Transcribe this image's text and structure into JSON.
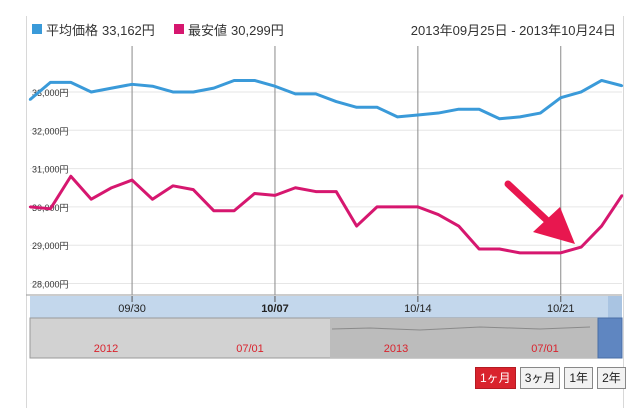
{
  "legend": {
    "average": {
      "label": "平均価格",
      "value": "33,162円",
      "color": "#3a9ad9"
    },
    "lowest": {
      "label": "最安値",
      "value": "30,299円",
      "color": "#d6176f"
    }
  },
  "date_range": {
    "start": "2013年09月25日",
    "separator": " - ",
    "end": "2013年10月24日"
  },
  "navigator": {
    "labels": [
      "2012",
      "07/01",
      "2013",
      "07/01"
    ],
    "label_color": "#d9232d"
  },
  "range_buttons": [
    {
      "label": "1ヶ月",
      "active": true
    },
    {
      "label": "3ヶ月",
      "active": false
    },
    {
      "label": "1年",
      "active": false
    },
    {
      "label": "2年",
      "active": false
    }
  ],
  "colors": {
    "accent": "#d9232d",
    "axis_band": "#c3d7ec",
    "arrow": "#e8174f"
  },
  "annotation": {
    "type": "arrow",
    "color": "#e8174f"
  },
  "chart_data": {
    "type": "line",
    "x_range": [
      "2013-09-25",
      "2013-10-24"
    ],
    "ylim": [
      27700,
      34200
    ],
    "y_ticks": [
      28000,
      29000,
      30000,
      31000,
      32000,
      33000
    ],
    "y_tick_labels": [
      "28,000円",
      "29,000円",
      "30,000円",
      "31,000円",
      "32,000円",
      "33,000円"
    ],
    "x_ticks": [
      "2013-09-30",
      "2013-10-07",
      "2013-10-14",
      "2013-10-21"
    ],
    "x_tick_labels": [
      "09/30",
      "10/07",
      "10/14",
      "10/21"
    ],
    "x_tick_bold": [
      false,
      true,
      false,
      false
    ],
    "grid": true,
    "x": [
      "2013-09-25",
      "2013-09-26",
      "2013-09-27",
      "2013-09-28",
      "2013-09-29",
      "2013-09-30",
      "2013-10-01",
      "2013-10-02",
      "2013-10-03",
      "2013-10-04",
      "2013-10-05",
      "2013-10-06",
      "2013-10-07",
      "2013-10-08",
      "2013-10-09",
      "2013-10-10",
      "2013-10-11",
      "2013-10-12",
      "2013-10-13",
      "2013-10-14",
      "2013-10-15",
      "2013-10-16",
      "2013-10-17",
      "2013-10-18",
      "2013-10-19",
      "2013-10-20",
      "2013-10-21",
      "2013-10-22",
      "2013-10-23",
      "2013-10-24"
    ],
    "series": [
      {
        "name": "平均価格",
        "color": "#3a9ad9",
        "values": [
          32800,
          33250,
          33250,
          33000,
          33100,
          33200,
          33150,
          33000,
          33000,
          33100,
          33300,
          33300,
          33150,
          32950,
          32950,
          32750,
          32600,
          32600,
          32350,
          32400,
          32450,
          32550,
          32550,
          32300,
          32350,
          32450,
          32850,
          33000,
          33300,
          33162
        ]
      },
      {
        "name": "最安値",
        "color": "#d6176f",
        "values": [
          30000,
          29950,
          30800,
          30200,
          30500,
          30700,
          30200,
          30550,
          30450,
          29900,
          29900,
          30350,
          30300,
          30500,
          30400,
          30400,
          29500,
          30000,
          30000,
          30000,
          29800,
          29500,
          28900,
          28900,
          28800,
          28800,
          28800,
          28950,
          29500,
          30299
        ]
      }
    ]
  }
}
